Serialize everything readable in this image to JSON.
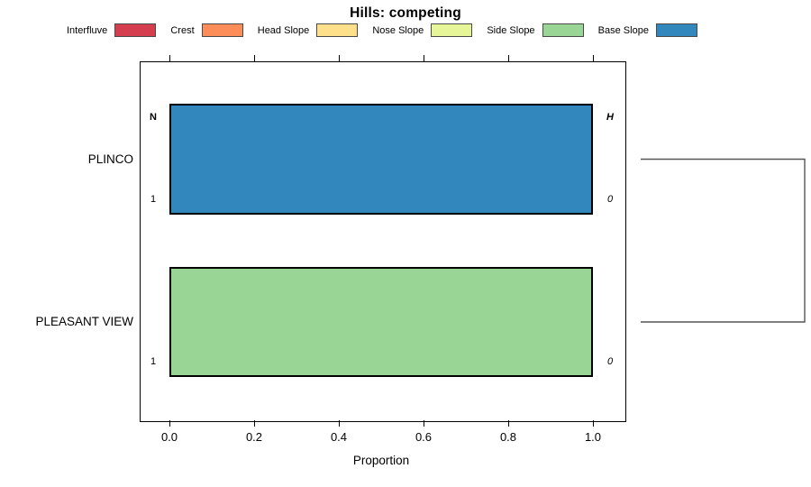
{
  "title": "Hills: competing",
  "legend": {
    "items": [
      {
        "label": "Interfluve",
        "color": "#D53E4F"
      },
      {
        "label": "Crest",
        "color": "#FC8D59"
      },
      {
        "label": "Head Slope",
        "color": "#FEE08B"
      },
      {
        "label": "Nose Slope",
        "color": "#E6F598"
      },
      {
        "label": "Side Slope",
        "color": "#99D594"
      },
      {
        "label": "Base Slope",
        "color": "#3288BD"
      }
    ]
  },
  "chart_data": {
    "type": "bar",
    "orientation": "horizontal",
    "title": "Hills: competing",
    "xlabel": "Proportion",
    "ylabel": "",
    "xlim": [
      0,
      1
    ],
    "x_ticks": [
      0.0,
      0.2,
      0.4,
      0.6,
      0.8,
      1.0
    ],
    "x_tick_labels": [
      "0.0",
      "0.2",
      "0.4",
      "0.6",
      "0.8",
      "1.0"
    ],
    "grid": false,
    "legend_position": "top",
    "categories": [
      "PLINCO",
      "PLEASANT VIEW"
    ],
    "bars": [
      {
        "category": "PLINCO",
        "segments": [
          {
            "class": "Base Slope",
            "proportion": 1.0,
            "color": "#3288BD"
          }
        ],
        "annotations": [
          {
            "text": "N",
            "corner": "top-left",
            "style": "bold"
          },
          {
            "text": "1",
            "corner": "bottom-left",
            "style": "normal"
          },
          {
            "text": "H",
            "corner": "top-right",
            "style": "bold-italic"
          },
          {
            "text": "0",
            "corner": "bottom-right",
            "style": "italic"
          }
        ]
      },
      {
        "category": "PLEASANT VIEW",
        "segments": [
          {
            "class": "Side Slope",
            "proportion": 1.0,
            "color": "#99D594"
          }
        ],
        "annotations": [
          {
            "text": "1",
            "corner": "bottom-left",
            "style": "normal"
          },
          {
            "text": "0",
            "corner": "bottom-right",
            "style": "italic"
          }
        ]
      }
    ],
    "dendrogram": {
      "present": true,
      "line_color": "#555555",
      "joins": [
        [
          "PLINCO",
          "PLEASANT VIEW"
        ]
      ]
    }
  }
}
